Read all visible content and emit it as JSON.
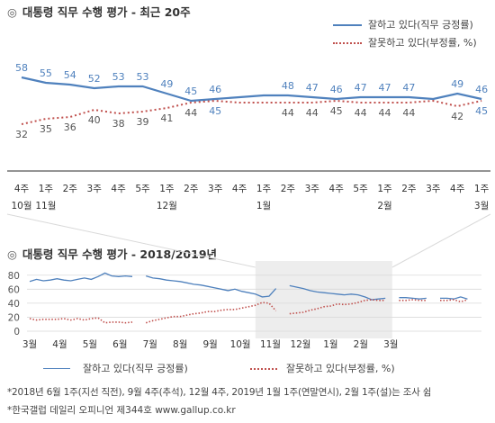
{
  "page": {
    "mark": "◎",
    "footnote1": "*2018년 6월 1주(지선 직전), 9월 4주(추석), 12월 4주, 2019년 1월 1주(연말연시), 2월 1주(설)는 조사 쉼",
    "footnote2": "*한국갤럽 데일리 오피니언 제344호 www.gallup.co.kr"
  },
  "chart_data": [
    {
      "type": "line",
      "title": "대통령 직무 수행 평가 - 최근 20주",
      "x": [
        "4주",
        "1주",
        "2주",
        "3주",
        "4주",
        "5주",
        "1주",
        "2주",
        "3주",
        "4주",
        "1주",
        "2주",
        "3주",
        "4주",
        "5주",
        "1주",
        "2주",
        "3주",
        "4주",
        "1주"
      ],
      "month_labels": [
        "10월",
        "11월",
        "",
        "",
        "",
        "",
        "12월",
        "",
        "",
        "",
        "1월",
        "",
        "",
        "",
        "",
        "2월",
        "",
        "",
        "",
        "3월"
      ],
      "series": [
        {
          "name": "잘하고 있다(직무 긍정률)",
          "color": "#4f81bd",
          "style": "solid",
          "values": [
            58,
            55,
            54,
            52,
            53,
            53,
            49,
            45,
            46,
            47,
            48,
            48,
            47,
            46,
            47,
            47,
            47,
            46,
            49,
            46
          ],
          "labels": [
            "58",
            "55",
            "54",
            "52",
            "53",
            "53",
            "49",
            "45",
            "46",
            "",
            "",
            "48",
            "47",
            "46",
            "47",
            "47",
            "47",
            "",
            "49",
            "46"
          ]
        },
        {
          "name": "잘못하고 있다(부정률, %)",
          "color": "#c0504d",
          "style": "dotted",
          "values": [
            32,
            35,
            36,
            40,
            38,
            39,
            41,
            44,
            45,
            44,
            44,
            44,
            44,
            45,
            44,
            44,
            44,
            45,
            42,
            45
          ],
          "labels": [
            "32",
            "35",
            "36",
            "40",
            "38",
            "39",
            "41",
            "44",
            "45",
            "",
            "",
            "44",
            "44",
            "45",
            "44",
            "44",
            "44",
            "",
            "42",
            "45"
          ]
        }
      ],
      "ylim": [
        25,
        65
      ],
      "grid": false,
      "legend": "top-right"
    },
    {
      "type": "line",
      "title": "대통령 직무 수행 평가 - 2018/2019년",
      "x_ticks": [
        "3월",
        "4월",
        "5월",
        "6월",
        "7월",
        "8월",
        "9월",
        "10월",
        "11월",
        "12월",
        "1월",
        "2월",
        "3월"
      ],
      "y_ticks": [
        "0",
        "20",
        "40",
        "60",
        "80"
      ],
      "ylim": [
        0,
        90
      ],
      "grid": true,
      "highlight_range_weeks": [
        33,
        53
      ],
      "series": [
        {
          "name": "잘하고 있다(직무 긍정률)",
          "color": "#4f81bd",
          "style": "solid",
          "segments": [
            {
              "start_week": 0,
              "values": [
                71,
                74,
                72,
                73,
                75,
                73,
                72,
                74,
                76,
                74,
                78,
                83,
                79,
                78,
                79,
                78
              ]
            },
            {
              "start_week": 17,
              "values": [
                79,
                76,
                75,
                73,
                72,
                71,
                69,
                67,
                66,
                64,
                62,
                60,
                58,
                60,
                57,
                55,
                53,
                49,
                50,
                61
              ]
            },
            {
              "start_week": 38,
              "values": [
                65,
                63,
                61,
                58,
                56,
                55,
                54,
                53,
                52,
                53,
                52,
                49,
                45,
                46,
                47
              ]
            },
            {
              "start_week": 54,
              "values": [
                48,
                48,
                47,
                46,
                47
              ]
            },
            {
              "start_week": 60,
              "values": [
                47,
                47,
                46,
                49,
                46
              ]
            }
          ]
        },
        {
          "name": "잘못하고 있다(부정률, %)",
          "color": "#c0504d",
          "style": "dotted",
          "segments": [
            {
              "start_week": 0,
              "values": [
                18,
                16,
                17,
                17,
                17,
                18,
                16,
                18,
                16,
                18,
                19,
                12,
                13,
                13,
                12,
                13
              ]
            },
            {
              "start_week": 17,
              "values": [
                12,
                15,
                17,
                19,
                21,
                21,
                23,
                25,
                26,
                28,
                28,
                30,
                31,
                31,
                33,
                35,
                37,
                41,
                40,
                29
              ]
            },
            {
              "start_week": 38,
              "values": [
                25,
                26,
                27,
                30,
                32,
                35,
                36,
                39,
                38,
                39,
                41,
                44,
                45,
                44,
                44
              ]
            },
            {
              "start_week": 54,
              "values": [
                44,
                44,
                45,
                44,
                44
              ]
            },
            {
              "start_week": 60,
              "values": [
                44,
                44,
                45,
                42,
                45
              ]
            }
          ]
        }
      ],
      "total_weeks": 65
    }
  ]
}
